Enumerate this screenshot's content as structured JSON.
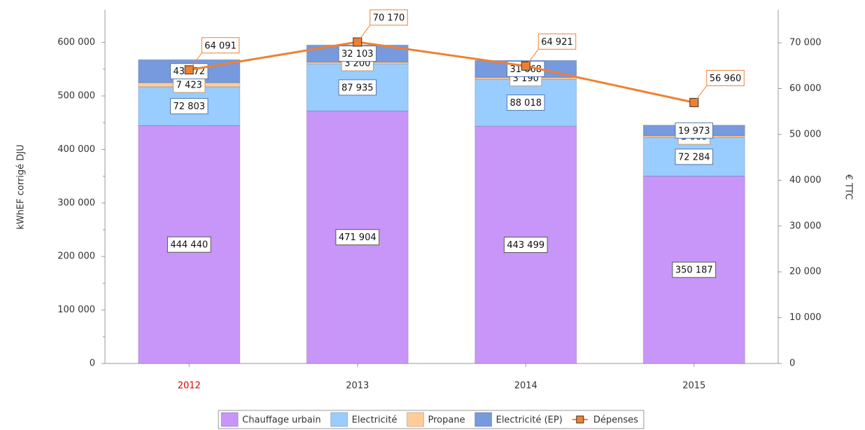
{
  "chart_data": {
    "type": "stacked_bar_line",
    "y_label": "kWhEF corrigé DJU",
    "y2_label": "€ TTC",
    "categories": [
      "2012",
      "2013",
      "2014",
      "2015"
    ],
    "category_colors": [
      "#e00000",
      "#333333",
      "#333333",
      "#333333"
    ],
    "series": [
      {
        "name": "Chauffage urbain",
        "color": "#c896f8",
        "values": [
          444440,
          471904,
          443499,
          350187
        ],
        "value_labels": [
          "444 440",
          "471 904",
          "443 499",
          "350 187"
        ]
      },
      {
        "name": "Electricité",
        "color": "#99ccff",
        "values": [
          72803,
          87935,
          88018,
          72284
        ],
        "value_labels": [
          "72 803",
          "87 935",
          "88 018",
          "72 284"
        ]
      },
      {
        "name": "Propane",
        "color": "#ffcc99",
        "values": [
          7423,
          3200,
          3190,
          3000
        ],
        "value_labels": [
          "7 423",
          "3 200",
          "3 190",
          "3 000"
        ]
      },
      {
        "name": "Electricité (EP)",
        "color": "#7799dd",
        "values": [
          43072,
          32103,
          31668,
          19973
        ],
        "value_labels": [
          "43 072",
          "32 103",
          "31 668",
          "19 973"
        ]
      },
      {
        "name": "Dépenses",
        "color": "#f08030",
        "axis": "y2",
        "values": [
          64091,
          70170,
          64921,
          56960
        ],
        "value_labels": [
          "64 091",
          "70 170",
          "64 921",
          "56 960"
        ]
      }
    ],
    "ylim": [
      0,
      661000
    ],
    "yticks": [
      {
        "value": 0,
        "label": "0"
      },
      {
        "value": 100000,
        "label": "100 000"
      },
      {
        "value": 200000,
        "label": "200 000"
      },
      {
        "value": 300000,
        "label": "300 000"
      },
      {
        "value": 400000,
        "label": "400 000"
      },
      {
        "value": 500000,
        "label": "500 000"
      },
      {
        "value": 600000,
        "label": "600 000"
      }
    ],
    "y2lim": [
      0,
      77200
    ],
    "y2ticks": [
      {
        "value": 0,
        "label": "0"
      },
      {
        "value": 10000,
        "label": "10 000"
      },
      {
        "value": 20000,
        "label": "20 000"
      },
      {
        "value": 30000,
        "label": "30 000"
      },
      {
        "value": 40000,
        "label": "40 000"
      },
      {
        "value": 50000,
        "label": "50 000"
      },
      {
        "value": 60000,
        "label": "60 000"
      },
      {
        "value": 70000,
        "label": "70 000"
      }
    ]
  }
}
